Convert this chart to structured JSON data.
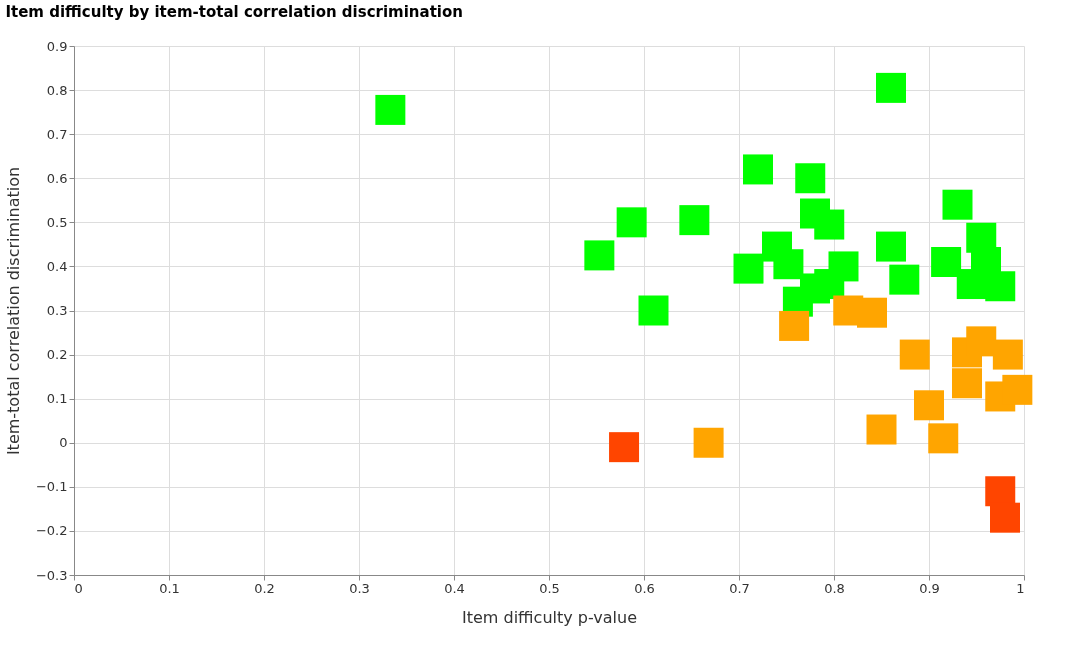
{
  "chart_data": {
    "type": "scatter",
    "title": "Item difficulty by item-total correlation discrimination",
    "xlabel": "Item difficulty p-value",
    "ylabel": "Item-total correlation discrimination",
    "xlim": [
      0,
      1
    ],
    "ylim": [
      -0.3,
      0.9
    ],
    "xticks": [
      0,
      0.1,
      0.2,
      0.3,
      0.4,
      0.5,
      0.6,
      0.7,
      0.8,
      0.9,
      1
    ],
    "yticks": [
      -0.3,
      -0.2,
      -0.1,
      0,
      0.1,
      0.2,
      0.3,
      0.4,
      0.5,
      0.6,
      0.7,
      0.8,
      0.9
    ],
    "grid": true,
    "legend": false,
    "marker": "square",
    "series": [
      {
        "color": "#00ff00",
        "x": [
          0.333,
          0.86,
          0.72,
          0.775,
          0.553,
          0.587,
          0.653,
          0.61,
          0.71,
          0.74,
          0.752,
          0.78,
          0.795,
          0.81,
          0.762,
          0.78,
          0.795,
          0.86,
          0.874,
          0.93,
          0.918,
          0.955,
          0.96,
          0.945,
          0.975
        ],
        "values": [
          0.755,
          0.805,
          0.62,
          0.6,
          0.425,
          0.5,
          0.505,
          0.3,
          0.395,
          0.445,
          0.405,
          0.52,
          0.495,
          0.4,
          0.32,
          0.35,
          0.36,
          0.445,
          0.37,
          0.54,
          0.41,
          0.465,
          0.41,
          0.36,
          0.355
        ]
      },
      {
        "color": "#ffa500",
        "x": [
          0.758,
          0.815,
          0.84,
          0.885,
          0.94,
          0.955,
          0.983,
          0.94,
          0.975,
          0.993,
          0.9,
          0.915,
          0.85,
          0.668
        ],
        "values": [
          0.265,
          0.3,
          0.295,
          0.2,
          0.205,
          0.23,
          0.2,
          0.135,
          0.105,
          0.12,
          0.085,
          0.01,
          0.03,
          0.0
        ]
      },
      {
        "color": "#ff4500",
        "x": [
          0.579,
          0.975,
          0.98
        ],
        "values": [
          -0.01,
          -0.11,
          -0.17
        ]
      }
    ]
  }
}
